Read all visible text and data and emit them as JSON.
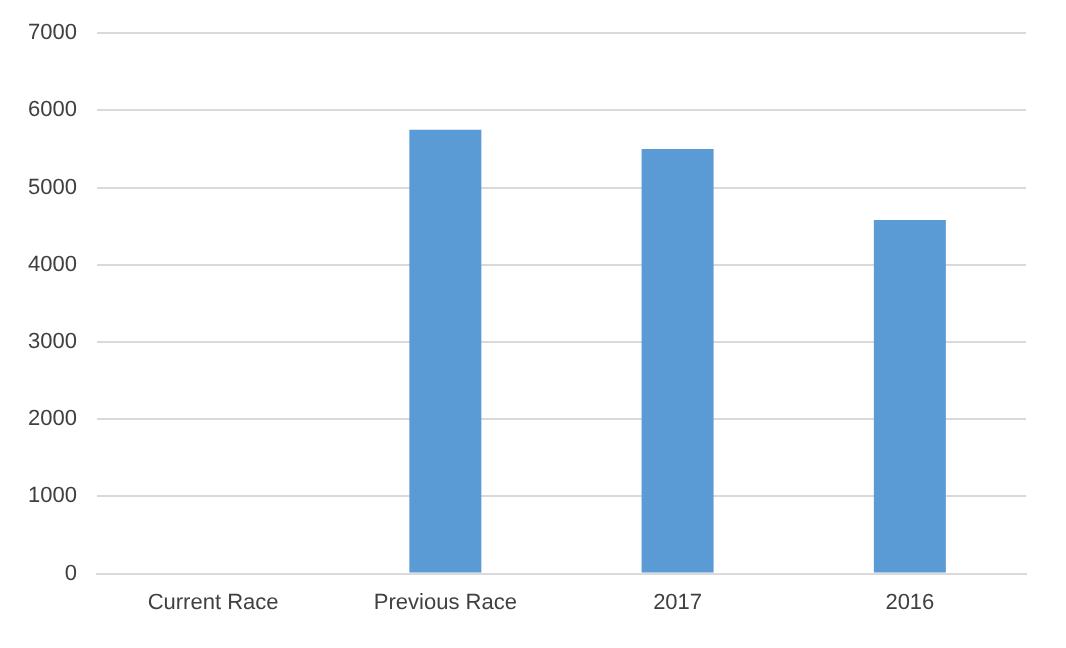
{
  "chart_data": {
    "type": "bar",
    "categories": [
      "Current Race",
      "Previous Race",
      "2017",
      "2016"
    ],
    "values": [
      0,
      5750,
      5500,
      4580
    ],
    "color": "#5b9bd5",
    "ylim": [
      0,
      7000
    ],
    "yticks": [
      0,
      1000,
      2000,
      3000,
      4000,
      5000,
      6000,
      7000
    ],
    "grid": "y"
  }
}
